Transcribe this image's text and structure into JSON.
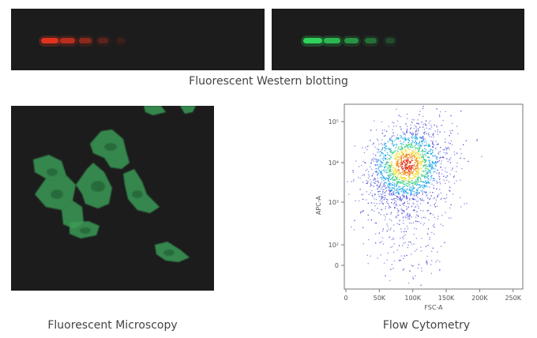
{
  "western_blot": {
    "caption": "Fluorescent Western blotting",
    "red_band_intensities": [
      1.0,
      0.75,
      0.5,
      0.28,
      0.14
    ],
    "green_band_intensities": [
      1.0,
      0.8,
      0.6,
      0.4,
      0.22
    ],
    "red_color": "#e0331e",
    "green_color": "#2fd35a"
  },
  "microscopy": {
    "caption": "Fluorescent Microscopy",
    "cell_color": "#3b9a55"
  },
  "flow_cytometry": {
    "caption": "Flow Cytometry",
    "x_axis_title": "FSC-A",
    "y_axis_title": "APC-A",
    "x_ticks": [
      "0",
      "50K",
      "100K",
      "150K",
      "200K",
      "250K"
    ],
    "y_ticks": [
      "10⁵",
      "10⁴",
      "10³",
      "10²",
      "0"
    ],
    "density_colors": [
      "#3b3fd6",
      "#22a8e8",
      "#44d18a",
      "#f0e040",
      "#f08a20",
      "#e23a1a"
    ]
  }
}
